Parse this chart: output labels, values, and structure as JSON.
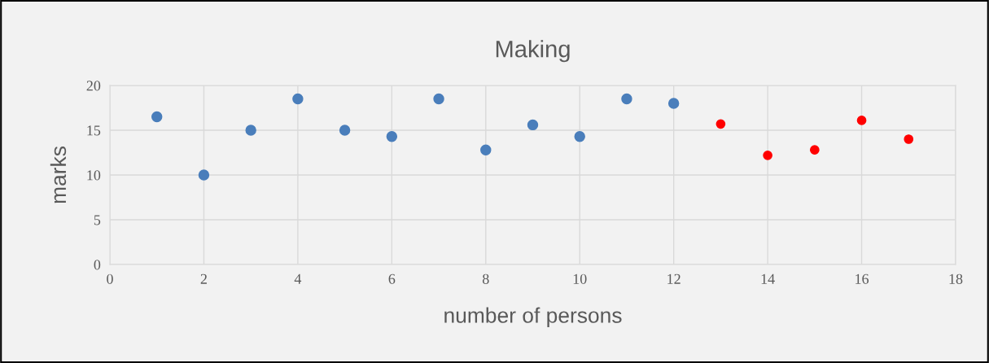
{
  "chart_data": {
    "type": "scatter",
    "title": "Making",
    "xlabel": "number of persons",
    "ylabel": "marks",
    "xlim": [
      0,
      18
    ],
    "xticks": [
      0,
      2,
      4,
      6,
      8,
      10,
      12,
      14,
      16,
      18
    ],
    "ylim": [
      0,
      20
    ],
    "yticks": [
      0,
      5,
      10,
      15,
      20
    ],
    "grid": true,
    "marker": "circle",
    "series": [
      {
        "color": "#4a7ebb",
        "x": [
          1,
          2,
          3,
          4,
          5,
          6,
          7,
          8,
          9,
          10,
          11,
          12
        ],
        "values": [
          16.5,
          10,
          15,
          18.5,
          15,
          14.3,
          18.5,
          12.8,
          15.6,
          14.3,
          18.5,
          18
        ]
      },
      {
        "color": "#ff0000",
        "x": [
          13,
          14,
          15,
          16,
          17
        ],
        "values": [
          15.7,
          12.2,
          12.8,
          16.1,
          14
        ]
      }
    ]
  }
}
